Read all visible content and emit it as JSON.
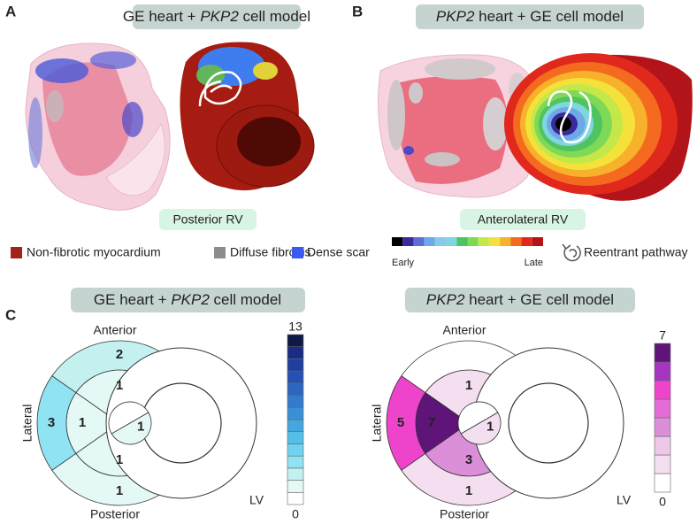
{
  "panel_a": {
    "label": "A",
    "title": [
      "GE heart + ",
      "PKP2",
      " cell model"
    ],
    "view": "Posterior RV"
  },
  "panel_b": {
    "label": "B",
    "title": [
      "PKP2",
      " heart + GE cell model"
    ],
    "view": "Anterolateral RV"
  },
  "legend": {
    "tissue": [
      {
        "name": "Non-fibrotic myocardium",
        "color": "#a3231b"
      },
      {
        "name": "Diffuse fibrosis",
        "color": "#8a8f8c"
      },
      {
        "name": "Dense scar",
        "color": "#3b5bf0"
      }
    ],
    "activation": {
      "start": "Early",
      "end": "Late",
      "colors": [
        "#000000",
        "#3a2a9a",
        "#5c6fd6",
        "#6fa8e8",
        "#89c9ee",
        "#7fd6e0",
        "#4fc35f",
        "#7ed957",
        "#c4e84a",
        "#f4e23a",
        "#f7b12a",
        "#f46a1f",
        "#e0281c",
        "#b3141a"
      ]
    },
    "pathway": "Reentrant pathway"
  },
  "panel_c": {
    "label": "C",
    "plots": [
      {
        "title": [
          "GE heart + ",
          "PKP2",
          " cell model"
        ],
        "anterior": "Anterior",
        "lateral": "Lateral",
        "posterior": "Posterior",
        "lv": "LV",
        "segments": {
          "outer": [
            2,
            3,
            1
          ],
          "middle": [
            1,
            1,
            1
          ],
          "inner": [
            0,
            1
          ]
        },
        "scale": {
          "min": 0,
          "max": 13,
          "colors": [
            "#ffffff",
            "#e4f8f6",
            "#c4f0f0",
            "#8fe3f3",
            "#6fd3ef",
            "#55bfe9",
            "#44a7e0",
            "#3a90d6",
            "#337bcc",
            "#2c66c0",
            "#2552b2",
            "#1e3fa0",
            "#182c84",
            "#0e1a45"
          ]
        }
      },
      {
        "title": [
          "PKP2",
          " heart + GE cell model"
        ],
        "anterior": "Anterior",
        "lateral": "Lateral",
        "posterior": "Posterior",
        "lv": "LV",
        "segments": {
          "outer": [
            0,
            5,
            1
          ],
          "middle": [
            1,
            7,
            3
          ],
          "inner": [
            0,
            1
          ]
        },
        "scale": {
          "min": 0,
          "max": 7,
          "colors": [
            "#ffffff",
            "#f4dff0",
            "#eec8e8",
            "#dc8fd9",
            "#e46cd6",
            "#ee44cc",
            "#a436c0",
            "#5e1478"
          ]
        }
      }
    ]
  }
}
